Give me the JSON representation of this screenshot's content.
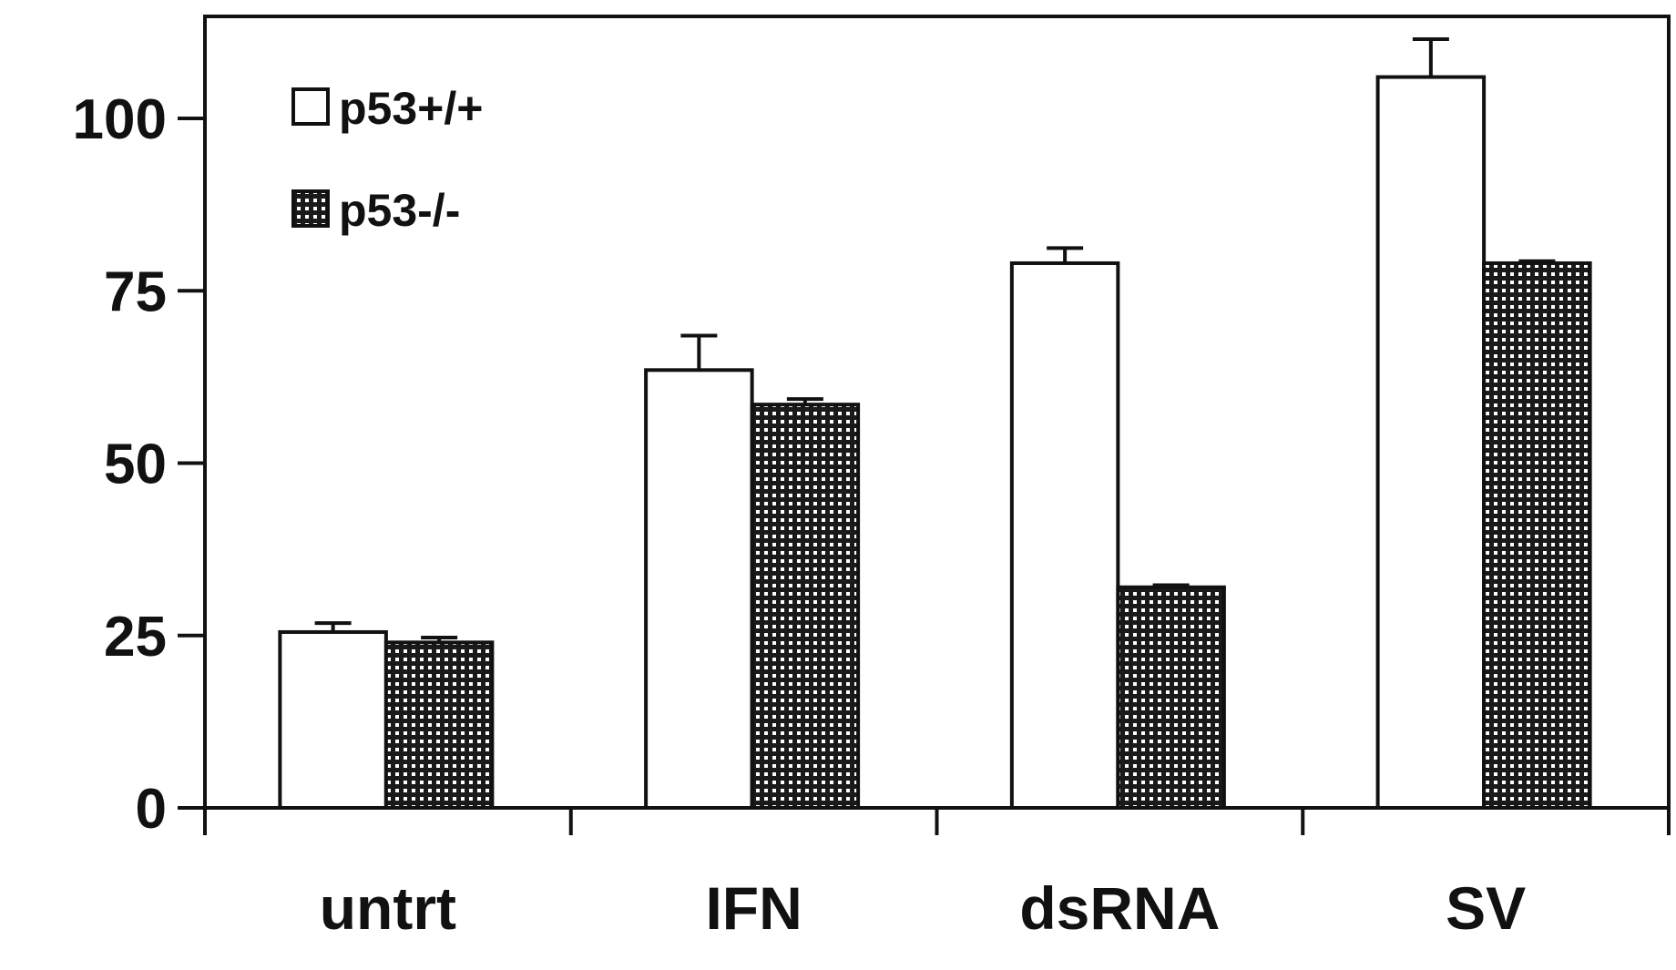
{
  "chart_data": {
    "type": "bar",
    "title": "",
    "xlabel": "",
    "ylabel": "",
    "categories": [
      "untrt",
      "IFN",
      "dsRNA",
      "SV"
    ],
    "series": [
      {
        "name": "p53+/+",
        "values": [
          25.5,
          63.5,
          79,
          106
        ],
        "errors": [
          1.3,
          5,
          2.2,
          5.5
        ],
        "fill": "#ffffff"
      },
      {
        "name": "p53-/-",
        "values": [
          24,
          58.5,
          32,
          79
        ],
        "errors": [
          0.7,
          0.8,
          0.3,
          0.3
        ],
        "fill": "dotted"
      }
    ],
    "ylim": [
      0,
      115
    ],
    "yticks": [
      "0",
      "25",
      "50",
      "75",
      "100"
    ],
    "grid": false,
    "legend": "top-left",
    "colors": {
      "ink": "#111111",
      "background": "#ffffff"
    }
  }
}
